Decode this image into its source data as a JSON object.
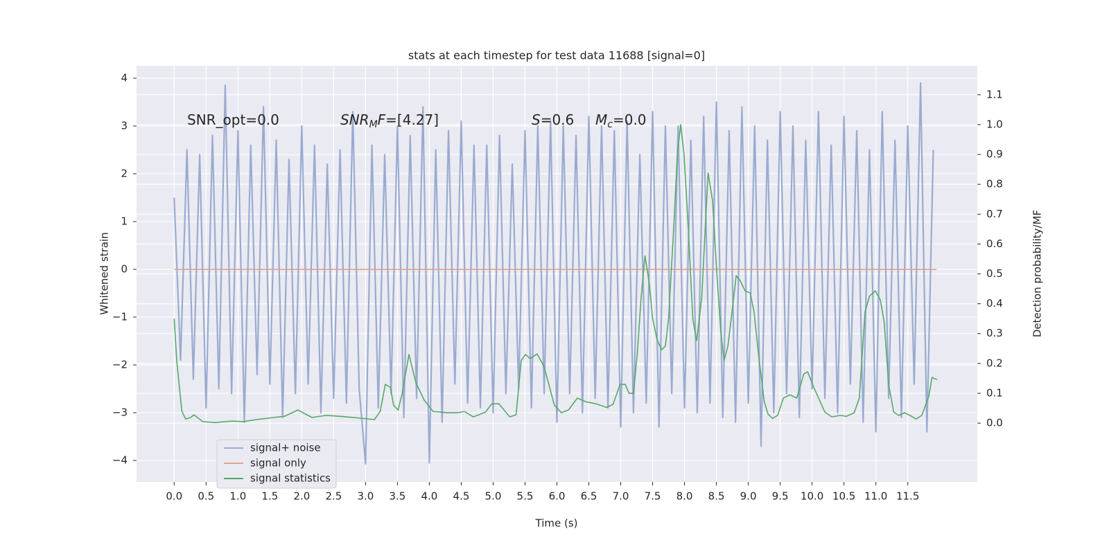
{
  "chart_data": {
    "type": "line",
    "title": "stats at each timestep for test data 11688 [signal=0]",
    "xlabel": "Time (s)",
    "ylabel": "Whitened strain",
    "y2label": "Detection probability/MF",
    "xlim": [
      -0.59,
      12.59
    ],
    "ylim": [
      -4.45,
      4.26
    ],
    "y2lim": [
      -0.197,
      1.197
    ],
    "xticks": [
      {
        "value": 0,
        "label": "0.0"
      },
      0.5,
      {
        "value": 1,
        "label": "1.0"
      },
      1.5,
      {
        "value": 2,
        "label": "2.0"
      },
      2.5,
      {
        "value": 3,
        "label": "3.0"
      },
      3.5,
      {
        "value": 4,
        "label": "4.0"
      },
      4.5,
      {
        "value": 5,
        "label": "5.0"
      },
      5.5,
      {
        "value": 6,
        "label": "6.0"
      },
      6.5,
      {
        "value": 7,
        "label": "7.0"
      },
      7.5,
      {
        "value": 8,
        "label": "8.0"
      },
      8.5,
      {
        "value": 9,
        "label": "9.0"
      },
      9.5,
      {
        "value": 10,
        "label": "10.0"
      },
      10.5,
      {
        "value": 11,
        "label": "11.0"
      },
      11.5
    ],
    "yticks": [
      {
        "value": -4,
        "label": "−4"
      },
      {
        "value": -3,
        "label": "−3"
      },
      {
        "value": -2,
        "label": "−2"
      },
      {
        "value": -1,
        "label": "−1"
      },
      0,
      1,
      2,
      3,
      4
    ],
    "y2ticks": [
      {
        "value": 0,
        "label": "0.0"
      },
      0.1,
      0.2,
      0.3,
      0.4,
      0.5,
      0.6,
      0.7,
      0.8,
      0.9,
      {
        "value": 1,
        "label": "1.0"
      },
      1.1
    ],
    "grid": true,
    "legend_loc": "lower left",
    "annotations": [
      [
        {
          "text": "SNR_opt=0.0"
        }
      ],
      [
        {
          "text": "SNR",
          "italic": true
        },
        {
          "text": "M",
          "italic": true,
          "sub": true
        },
        {
          "text": "F",
          "italic": true
        },
        {
          "text": "=[4.27]"
        }
      ],
      [
        {
          "text": "S",
          "italic": true
        },
        {
          "text": "=0.6"
        }
      ],
      [
        {
          "text": "M",
          "italic": true
        },
        {
          "text": "c",
          "italic": true,
          "sub": true
        },
        {
          "text": "=0.0"
        }
      ]
    ],
    "series": [
      {
        "name": "signal+ noise",
        "color": "#9aabd0",
        "x": [
          0.0,
          0.1,
          0.2,
          0.3,
          0.4,
          0.5,
          0.6,
          0.7,
          0.8,
          0.9,
          1.0,
          1.1,
          1.2,
          1.3,
          1.4,
          1.5,
          1.6,
          1.7,
          1.8,
          1.9,
          2.0,
          2.1,
          2.2,
          2.3,
          2.4,
          2.5,
          2.6,
          2.7,
          2.8,
          2.9,
          3.0,
          3.1,
          3.2,
          3.3,
          3.4,
          3.5,
          3.6,
          3.7,
          3.8,
          3.9,
          4.0,
          4.1,
          4.2,
          4.3,
          4.4,
          4.5,
          4.6,
          4.7,
          4.8,
          4.9,
          5.0,
          5.1,
          5.2,
          5.3,
          5.4,
          5.5,
          5.6,
          5.7,
          5.8,
          5.9,
          6.0,
          6.1,
          6.2,
          6.3,
          6.4,
          6.5,
          6.6,
          6.7,
          6.8,
          6.9,
          7.0,
          7.1,
          7.2,
          7.3,
          7.4,
          7.5,
          7.6,
          7.7,
          7.8,
          7.9,
          8.0,
          8.1,
          8.2,
          8.3,
          8.4,
          8.5,
          8.6,
          8.7,
          8.8,
          8.9,
          9.0,
          9.1,
          9.2,
          9.3,
          9.4,
          9.5,
          9.6,
          9.7,
          9.8,
          9.9,
          10.0,
          10.1,
          10.2,
          10.3,
          10.4,
          10.5,
          10.6,
          10.7,
          10.8,
          10.9,
          11.0,
          11.1,
          11.2,
          11.3,
          11.4,
          11.5,
          11.6,
          11.7,
          11.8,
          11.9
        ],
        "values": [
          1.5,
          -1.9,
          2.5,
          -2.3,
          2.4,
          -2.9,
          2.8,
          -2.5,
          3.85,
          -2.6,
          2.9,
          -3.2,
          2.6,
          -2.2,
          3.4,
          -2.4,
          2.7,
          -3.1,
          2.3,
          -2.6,
          3.0,
          -2.4,
          2.6,
          -3.0,
          2.2,
          -2.7,
          2.5,
          -2.8,
          3.3,
          -2.5,
          -4.07,
          2.6,
          -2.9,
          2.4,
          -2.6,
          3.0,
          -3.1,
          2.8,
          -2.7,
          3.4,
          -4.05,
          2.5,
          -3.2,
          2.9,
          -2.4,
          3.1,
          -2.8,
          2.6,
          -2.9,
          2.6,
          -3.0,
          2.8,
          -2.6,
          2.2,
          -2.5,
          2.9,
          -2.9,
          3.0,
          -2.6,
          3.1,
          -3.2,
          3.0,
          -2.6,
          2.8,
          -3.0,
          3.2,
          -2.7,
          3.0,
          -2.9,
          2.9,
          -3.3,
          3.1,
          -3.0,
          2.4,
          -2.8,
          3.3,
          -3.3,
          3.0,
          -2.6,
          3.0,
          -2.9,
          2.7,
          -3.0,
          3.2,
          -2.8,
          3.5,
          -3.1,
          2.9,
          -3.2,
          3.4,
          -2.8,
          3.0,
          -3.7,
          2.7,
          -3.0,
          3.3,
          -2.6,
          3.0,
          -3.1,
          2.7,
          -2.5,
          3.3,
          -2.7,
          2.6,
          -3.0,
          3.2,
          -2.4,
          2.9,
          -3.2,
          2.5,
          -3.4,
          3.3,
          -2.7,
          2.7,
          -3.1,
          3.0,
          -2.4,
          3.9,
          -3.4,
          2.5
        ]
      },
      {
        "name": "signal only",
        "color": "#e2a38b",
        "x": [
          0.0,
          11.95
        ],
        "values": [
          0,
          0
        ]
      },
      {
        "name": "signal statistics",
        "color": "#55a868",
        "axis": "y2",
        "x": [
          0.0,
          0.04,
          0.12,
          0.18,
          0.26,
          0.31,
          0.45,
          0.64,
          0.91,
          1.08,
          1.29,
          1.56,
          1.73,
          1.94,
          2.16,
          2.38,
          2.6,
          2.81,
          3.14,
          3.23,
          3.31,
          3.39,
          3.44,
          3.51,
          3.57,
          3.68,
          3.79,
          3.92,
          4.06,
          4.28,
          4.44,
          4.55,
          4.69,
          4.88,
          4.98,
          5.09,
          5.26,
          5.36,
          5.44,
          5.51,
          5.58,
          5.69,
          5.8,
          5.96,
          6.07,
          6.18,
          6.32,
          6.45,
          6.61,
          6.78,
          6.88,
          6.99,
          7.07,
          7.13,
          7.2,
          7.26,
          7.32,
          7.38,
          7.45,
          7.5,
          7.57,
          7.64,
          7.7,
          7.75,
          7.83,
          7.89,
          7.94,
          7.99,
          8.06,
          8.13,
          8.19,
          8.27,
          8.33,
          8.37,
          8.44,
          8.51,
          8.57,
          8.62,
          8.68,
          8.76,
          8.81,
          8.87,
          8.95,
          9.03,
          9.09,
          9.17,
          9.25,
          9.31,
          9.38,
          9.46,
          9.55,
          9.65,
          9.76,
          9.87,
          9.93,
          10.03,
          10.2,
          10.31,
          10.44,
          10.54,
          10.66,
          10.74,
          10.83,
          10.9,
          10.99,
          11.07,
          11.13,
          11.2,
          11.28,
          11.36,
          11.45,
          11.56,
          11.63,
          11.72,
          11.83,
          11.88,
          11.96
        ],
        "values": [
          0.35,
          0.21,
          0.04,
          0.014,
          0.019,
          0.028,
          0.005,
          0.002,
          0.007,
          0.005,
          0.012,
          0.019,
          0.023,
          0.044,
          0.019,
          0.026,
          0.023,
          0.019,
          0.012,
          0.04,
          0.13,
          0.12,
          0.06,
          0.044,
          0.095,
          0.23,
          0.135,
          0.077,
          0.039,
          0.035,
          0.035,
          0.039,
          0.021,
          0.037,
          0.065,
          0.065,
          0.021,
          0.028,
          0.21,
          0.23,
          0.216,
          0.232,
          0.188,
          0.06,
          0.035,
          0.044,
          0.084,
          0.072,
          0.065,
          0.053,
          0.063,
          0.13,
          0.13,
          0.1,
          0.1,
          0.234,
          0.42,
          0.56,
          0.466,
          0.35,
          0.28,
          0.246,
          0.258,
          0.35,
          0.65,
          0.907,
          1.0,
          0.907,
          0.65,
          0.35,
          0.276,
          0.42,
          0.675,
          0.838,
          0.745,
          0.49,
          0.304,
          0.21,
          0.258,
          0.4,
          0.494,
          0.478,
          0.443,
          0.436,
          0.373,
          0.211,
          0.072,
          0.03,
          0.016,
          0.026,
          0.084,
          0.095,
          0.084,
          0.165,
          0.172,
          0.118,
          0.037,
          0.021,
          0.026,
          0.023,
          0.035,
          0.084,
          0.373,
          0.425,
          0.443,
          0.413,
          0.339,
          0.13,
          0.037,
          0.026,
          0.035,
          0.023,
          0.014,
          0.026,
          0.09,
          0.153,
          0.146
        ]
      }
    ]
  }
}
